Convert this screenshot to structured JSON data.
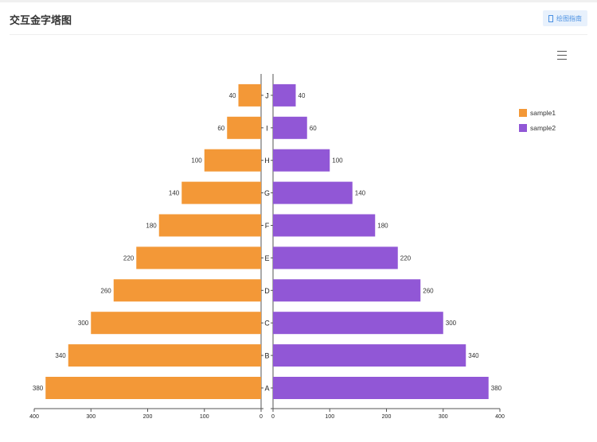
{
  "header": {
    "title": "交互金字塔图",
    "guide_label": "绘图指南",
    "guide_icon": "document-icon",
    "menu_icon": "hamburger-menu-icon"
  },
  "chart_data": {
    "type": "bar",
    "orientation": "horizontal-pyramid",
    "categories": [
      "A",
      "B",
      "C",
      "D",
      "E",
      "F",
      "G",
      "H",
      "I",
      "J"
    ],
    "series": [
      {
        "name": "sample1",
        "color": "#f39837",
        "side": "left",
        "values": [
          380,
          340,
          300,
          260,
          220,
          180,
          140,
          100,
          60,
          40
        ]
      },
      {
        "name": "sample2",
        "color": "#9157d6",
        "side": "right",
        "values": [
          380,
          340,
          300,
          260,
          220,
          180,
          140,
          100,
          60,
          40
        ]
      }
    ],
    "xlim": [
      0,
      400
    ],
    "xticks": [
      0,
      100,
      200,
      300,
      400
    ],
    "legend_position": "right",
    "grid": false,
    "data_labels": true
  }
}
